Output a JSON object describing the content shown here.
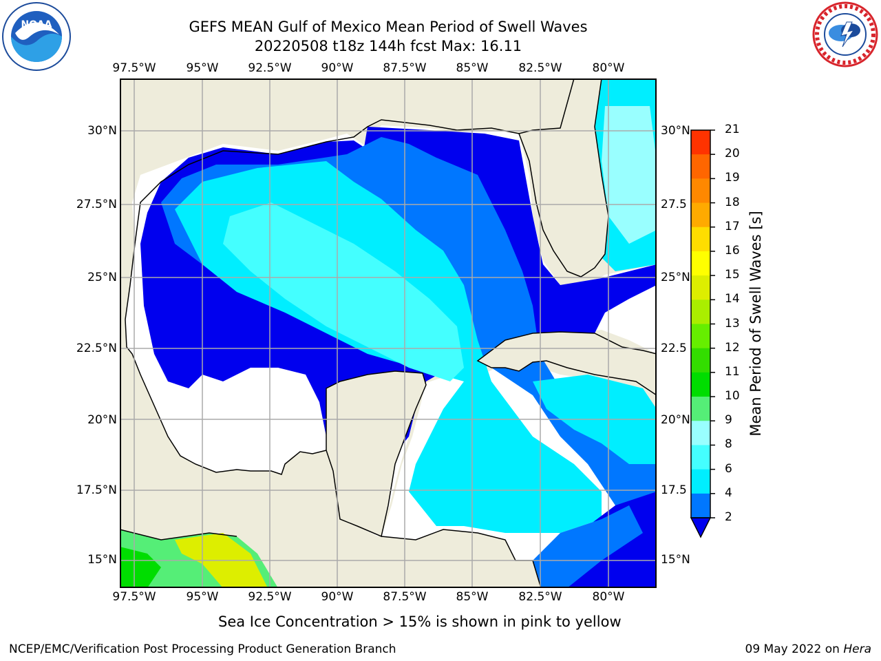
{
  "header": {
    "title_line1": "GEFS MEAN Gulf of Mexico Mean Period of Swell Waves",
    "title_line2": "20220508 t18z 144h fcst   Max: 16.11"
  },
  "logos": {
    "left": {
      "name": "noaa-logo",
      "text": "NOAA"
    },
    "right": {
      "name": "national-weather-service-logo",
      "text": "NATIONAL WEATHER SERVICE"
    }
  },
  "map": {
    "lon_ticks_top": [
      "97.5°W",
      "95°W",
      "92.5°W",
      "90°W",
      "87.5°W",
      "85°W",
      "82.5°W",
      "80°W"
    ],
    "lon_ticks_bottom": [
      "97.5°W",
      "95°W",
      "92.5°W",
      "90°W",
      "87.5°W",
      "85°W",
      "82.5°W",
      "80°W"
    ],
    "lat_ticks_left": [
      "30°N",
      "27.5°N",
      "25°N",
      "22.5°N",
      "20°N",
      "17.5°N",
      "15°N"
    ],
    "lat_ticks_right": [
      "30°N",
      "27.5",
      "25°N",
      "22.5",
      "20°N",
      "17.5",
      "15°N"
    ],
    "extent": {
      "lon_min": -98,
      "lon_max": -78.2,
      "lat_min": 14,
      "lat_max": 31.8
    },
    "grid": true,
    "colors": {
      "land": "#eeecdb",
      "ocean_no_swell": "#ffffff",
      "grid": "#aaaaaa",
      "coast": "#000000"
    }
  },
  "colorbar": {
    "label": "Mean Period of Swell Waves [s]",
    "ticks": [
      "21",
      "20",
      "19",
      "18",
      "17",
      "16",
      "15",
      "14",
      "13",
      "12",
      "11",
      "10",
      "9",
      "8",
      "6",
      "4",
      "2"
    ],
    "colors": [
      "#0000ee",
      "#0077ff",
      "#00eeff",
      "#44ffff",
      "#99ffff",
      "#55ee77",
      "#00dd00",
      "#33dd00",
      "#66ee00",
      "#aaee00",
      "#ddee00",
      "#ffff00",
      "#ffdd00",
      "#ffaa00",
      "#ff8800",
      "#ff6600",
      "#ff3300",
      "#ff0000"
    ],
    "extend": "min"
  },
  "note": "Sea Ice Concentration > 15% is shown in pink to yellow",
  "footer": {
    "left": "NCEP/EMC/Verification Post Processing Product Generation Branch",
    "right_prefix": "09 May 2022 on ",
    "right_host": "Hera"
  }
}
